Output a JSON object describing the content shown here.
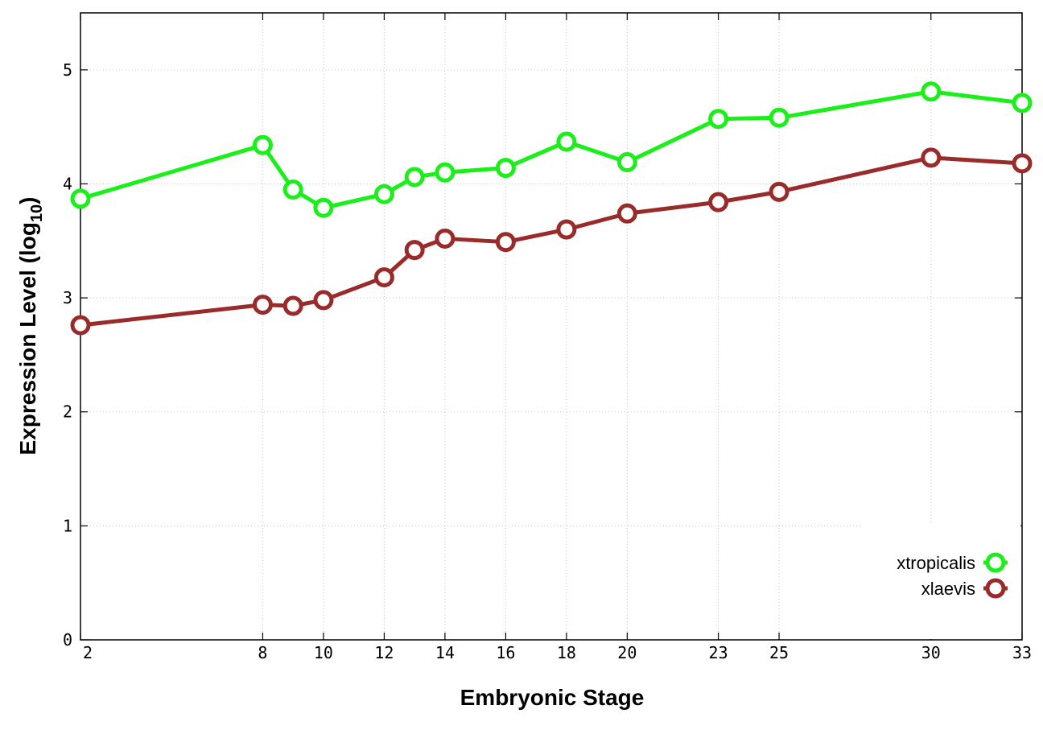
{
  "chart_data": {
    "type": "line",
    "xlabel": "Embryonic Stage",
    "ylabel_main": "Expression Level (log",
    "ylabel_sub": "10",
    "ylabel_close": ")",
    "x": [
      2,
      8,
      9,
      10,
      12,
      13,
      14,
      16,
      18,
      20,
      23,
      25,
      30,
      33
    ],
    "x_ticks": [
      2,
      8,
      10,
      12,
      14,
      16,
      18,
      20,
      23,
      25,
      30,
      33
    ],
    "x_tick_labels": [
      "2",
      "8",
      "10",
      "12",
      "14",
      "16",
      "18",
      "20",
      "23",
      "25",
      "30",
      "33"
    ],
    "y_ticks": [
      0,
      1,
      2,
      3,
      4,
      5
    ],
    "y_tick_labels": [
      "0",
      "1",
      "2",
      "3",
      "4",
      "5"
    ],
    "xlim": [
      2,
      33
    ],
    "ylim": [
      0,
      5.5
    ],
    "grid": true,
    "legend_position": "bottom-right",
    "series": [
      {
        "name": "xtropicalis",
        "color": "#1aef1a",
        "values": [
          3.87,
          4.34,
          3.95,
          3.79,
          3.91,
          4.06,
          4.1,
          4.14,
          4.37,
          4.19,
          4.57,
          4.58,
          4.81,
          4.71
        ]
      },
      {
        "name": "xlaevis",
        "color": "#992b2b",
        "values": [
          2.76,
          2.94,
          2.93,
          2.98,
          3.18,
          3.42,
          3.52,
          3.49,
          3.6,
          3.74,
          3.84,
          3.93,
          4.23,
          4.18
        ]
      }
    ]
  }
}
